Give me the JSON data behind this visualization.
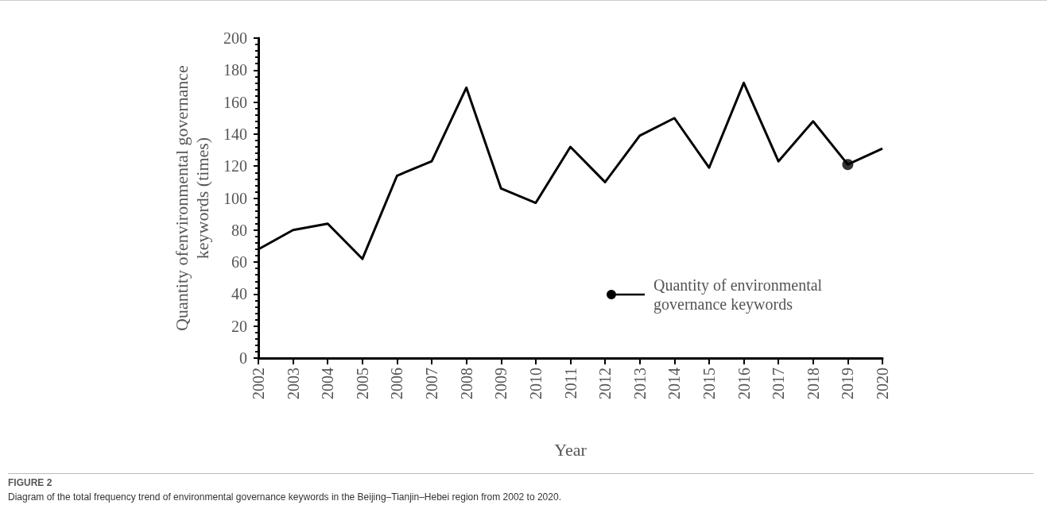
{
  "chart_data": {
    "type": "line",
    "title": "FIGURE 2",
    "subtitle": "Diagram of the total frequency trend of environmental governance keywords in the Beijing–Tianjin–Hebei region from 2002 to 2020.",
    "xlabel": "Year",
    "ylabel": "Quantity ofenvironmental governance\nkeywords (times)",
    "categories": [
      "2002",
      "2003",
      "2004",
      "2005",
      "2006",
      "2007",
      "2008",
      "2009",
      "2010",
      "2011",
      "2012",
      "2013",
      "2014",
      "2015",
      "2016",
      "2017",
      "2018",
      "2019",
      "2020"
    ],
    "series": [
      {
        "name": "Quantity of environmental governance keywords",
        "color": "#000000",
        "marker": "none",
        "values": [
          68,
          80,
          84,
          62,
          114,
          123,
          169,
          106,
          97,
          132,
          110,
          139,
          150,
          119,
          172,
          123,
          148,
          121,
          131
        ]
      },
      {
        "type": "scatter",
        "color": "#000000",
        "marker": "circle",
        "values": [
          null,
          null,
          null,
          null,
          null,
          null,
          null,
          null,
          null,
          null,
          null,
          null,
          null,
          null,
          null,
          null,
          null,
          121,
          null
        ]
      }
    ],
    "ylim": [
      0,
      200
    ],
    "yticks": [
      0,
      20,
      40,
      60,
      80,
      100,
      120,
      140,
      160,
      180,
      200
    ],
    "grid": false,
    "legend": "bottom right",
    "line_style": "solid"
  }
}
